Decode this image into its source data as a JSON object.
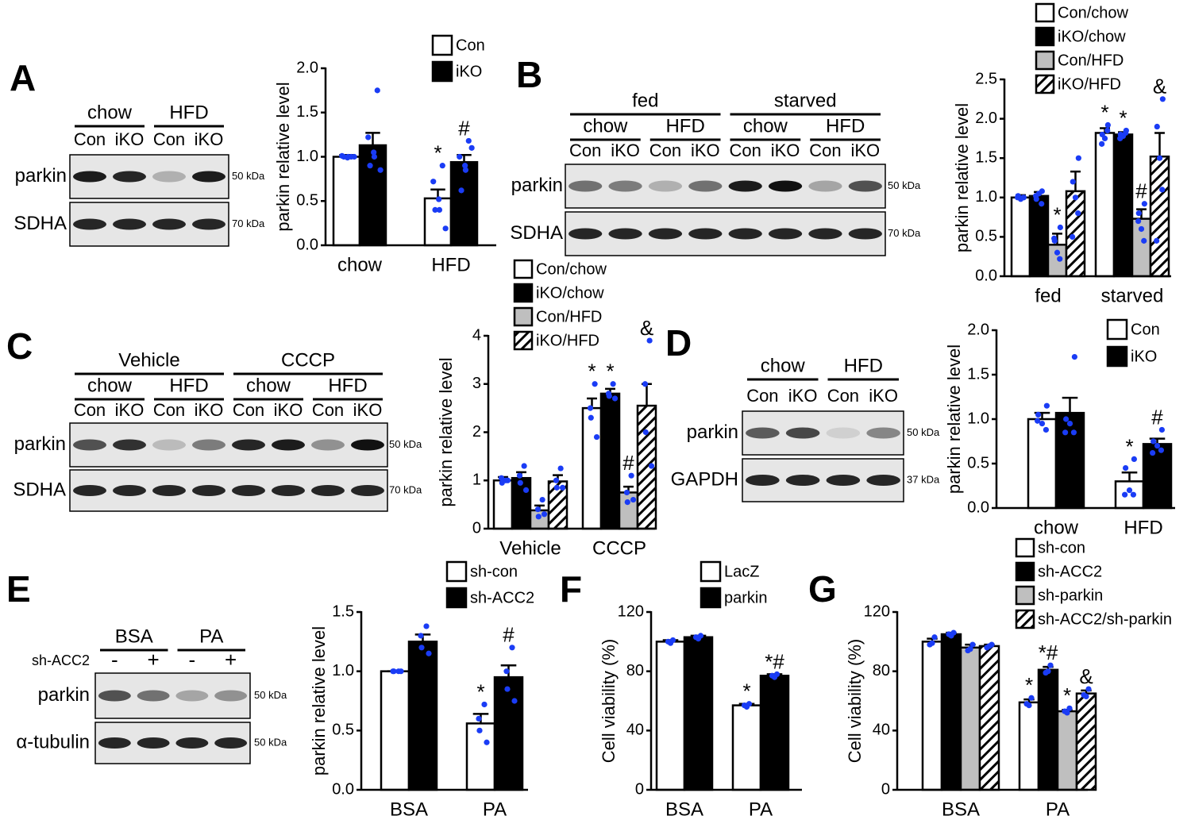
{
  "panels": [
    "A",
    "B",
    "C",
    "D",
    "E",
    "F",
    "G"
  ],
  "blots": [
    {
      "groups": [
        "chow",
        "HFD"
      ],
      "lanes": [
        "Con",
        "iKO",
        "Con",
        "iKO"
      ],
      "rows": [
        "parkin",
        "SDHA"
      ],
      "sizes": [
        "50 kDa",
        "70 kDa"
      ]
    },
    {
      "groups": [
        "fed",
        "starved"
      ],
      "subgroups": [
        "chow",
        "HFD",
        "chow",
        "HFD"
      ],
      "lanes": [
        "Con",
        "iKO",
        "Con",
        "iKO",
        "Con",
        "iKO",
        "Con",
        "iKO"
      ],
      "rows": [
        "parkin",
        "SDHA"
      ],
      "sizes": [
        "50 kDa",
        "70 kDa"
      ]
    },
    {
      "groups": [
        "Vehicle",
        "CCCP"
      ],
      "subgroups": [
        "chow",
        "HFD",
        "chow",
        "HFD"
      ],
      "lanes": [
        "Con",
        "iKO",
        "Con",
        "iKO",
        "Con",
        "iKO",
        "Con",
        "iKO"
      ],
      "rows": [
        "parkin",
        "SDHA"
      ],
      "sizes": [
        "50 kDa",
        "70 kDa"
      ]
    },
    {
      "groups": [
        "chow",
        "HFD"
      ],
      "lanes": [
        "Con",
        "iKO",
        "Con",
        "iKO"
      ],
      "rows": [
        "parkin",
        "GAPDH"
      ],
      "sizes": [
        "50 kDa",
        "37 kDa"
      ]
    },
    {
      "groups": [
        "BSA",
        "PA"
      ],
      "lane_label": "sh-ACC2",
      "lanes": [
        "-",
        "+",
        "-",
        "+"
      ],
      "rows": [
        "parkin",
        "α-tubulin"
      ],
      "sizes": [
        "50 kDa",
        "50 kDa"
      ]
    }
  ],
  "chart_data": [
    {
      "type": "bar",
      "ylabel": "parkin relative level",
      "categories": [
        "chow",
        "HFD"
      ],
      "ylim": [
        0,
        2
      ],
      "yticks": [
        {
          "value": 0,
          "label": "0.0"
        },
        0.5,
        {
          "value": 1,
          "label": "1.0"
        },
        1.5,
        {
          "value": 2,
          "label": "2.0"
        }
      ],
      "series": [
        {
          "name": "Con",
          "color": "#ffffff",
          "values": [
            1.0,
            0.53
          ],
          "errors": [
            0.02,
            0.1
          ],
          "points": [
            [
              1.0,
              1.01,
              0.99,
              1.0,
              1.0,
              1.0
            ],
            [
              0.9,
              0.72,
              0.52,
              0.4,
              0.4,
              0.19
            ]
          ],
          "markers": [
            null,
            "*"
          ]
        },
        {
          "name": "iKO",
          "color": "#000000",
          "values": [
            1.13,
            0.94
          ],
          "errors": [
            0.14,
            0.08
          ],
          "points": [
            [
              1.75,
              1.22,
              1.05,
              1.0,
              0.9,
              0.85
            ],
            [
              1.18,
              1.0,
              0.9,
              0.85,
              0.62,
              1.1
            ]
          ],
          "markers": [
            null,
            "#"
          ]
        }
      ]
    },
    {
      "type": "bar",
      "ylabel": "parkin relative level",
      "categories": [
        "fed",
        "starved"
      ],
      "ylim": [
        0,
        2.5
      ],
      "yticks": [
        {
          "value": 0,
          "label": "0.0"
        },
        0.5,
        {
          "value": 1,
          "label": "1.0"
        },
        1.5,
        {
          "value": 2,
          "label": "2.0"
        },
        2.5
      ],
      "series": [
        {
          "name": "Con/chow",
          "color": "#ffffff",
          "values": [
            1.0,
            1.82
          ],
          "errors": [
            0.03,
            0.06
          ],
          "points": [
            [
              1.0,
              1.02,
              0.98,
              1.0,
              1.0
            ],
            [
              1.92,
              1.8,
              1.75,
              1.85,
              1.68
            ]
          ],
          "markers": [
            null,
            "*"
          ]
        },
        {
          "name": "iKO/chow",
          "color": "#000000",
          "values": [
            1.02,
            1.8
          ],
          "errors": [
            0.05,
            0.03
          ],
          "points": [
            [
              1.08,
              0.98,
              1.05,
              0.92,
              1.02
            ],
            [
              1.85,
              1.8,
              1.78,
              1.82,
              1.75
            ]
          ],
          "markers": [
            null,
            "*"
          ]
        },
        {
          "name": "Con/HFD",
          "color": "#bfbfbf",
          "values": [
            0.4,
            0.73
          ],
          "errors": [
            0.14,
            0.12
          ],
          "points": [
            [
              0.62,
              0.45,
              0.3,
              0.22,
              0.48
            ],
            [
              0.92,
              0.8,
              0.6,
              0.45,
              0.7
            ]
          ],
          "markers": [
            "*",
            "#"
          ]
        },
        {
          "name": "iKO/HFD",
          "color": "#ffffff",
          "pattern": "hatch",
          "values": [
            1.08,
            1.52
          ],
          "errors": [
            0.25,
            0.3
          ],
          "points": [
            [
              1.5,
              1.2,
              1.0,
              0.8,
              0.5
            ],
            [
              2.25,
              1.9,
              1.5,
              1.1,
              0.45
            ]
          ],
          "markers": [
            null,
            "&"
          ]
        }
      ]
    },
    {
      "type": "bar",
      "ylabel": "parkin relative level",
      "categories": [
        "Vehicle",
        "CCCP"
      ],
      "ylim": [
        0,
        4
      ],
      "yticks": [
        0,
        1,
        2,
        3,
        4
      ],
      "series": [
        {
          "name": "Con/chow",
          "color": "#ffffff",
          "values": [
            1.0,
            2.5
          ],
          "errors": [
            0.07,
            0.2
          ],
          "points": [
            [
              1.0,
              1.05,
              0.95,
              1.0
            ],
            [
              3.0,
              2.5,
              2.3,
              1.9
            ]
          ],
          "markers": [
            null,
            "*"
          ]
        },
        {
          "name": "iKO/chow",
          "color": "#000000",
          "values": [
            1.05,
            2.8
          ],
          "errors": [
            0.12,
            0.1
          ],
          "points": [
            [
              1.3,
              1.1,
              0.95,
              0.8
            ],
            [
              3.0,
              2.8,
              2.75,
              2.7
            ]
          ],
          "markers": [
            null,
            "*"
          ]
        },
        {
          "name": "Con/HFD",
          "color": "#bfbfbf",
          "values": [
            0.38,
            0.75
          ],
          "errors": [
            0.1,
            0.12
          ],
          "points": [
            [
              0.6,
              0.4,
              0.25,
              0.3
            ],
            [
              1.1,
              0.75,
              0.55,
              0.6
            ]
          ],
          "markers": [
            null,
            "#"
          ]
        },
        {
          "name": "iKO/HFD",
          "color": "#ffffff",
          "pattern": "hatch",
          "values": [
            0.98,
            2.55
          ],
          "errors": [
            0.13,
            0.45
          ],
          "points": [
            [
              1.25,
              1.0,
              0.85,
              0.85
            ],
            [
              3.9,
              3.0,
              2.0,
              1.3
            ]
          ],
          "markers": [
            null,
            "&"
          ]
        }
      ]
    },
    {
      "type": "bar",
      "ylabel": "parkin relative level",
      "categories": [
        "chow",
        "HFD"
      ],
      "ylim": [
        0,
        2
      ],
      "yticks": [
        {
          "value": 0,
          "label": "0.0"
        },
        0.5,
        {
          "value": 1,
          "label": "1.0"
        },
        1.5,
        {
          "value": 2,
          "label": "2.0"
        }
      ],
      "series": [
        {
          "name": "Con",
          "color": "#ffffff",
          "values": [
            1.0,
            0.3
          ],
          "errors": [
            0.07,
            0.1
          ],
          "points": [
            [
              1.15,
              1.05,
              0.95,
              0.88,
              0.98
            ],
            [
              0.55,
              0.45,
              0.2,
              0.15,
              0.15
            ]
          ],
          "markers": [
            null,
            "*"
          ]
        },
        {
          "name": "iKO",
          "color": "#000000",
          "values": [
            1.07,
            0.72
          ],
          "errors": [
            0.17,
            0.06
          ],
          "points": [
            [
              1.7,
              1.0,
              0.95,
              0.85,
              0.85
            ],
            [
              0.88,
              0.75,
              0.7,
              0.65,
              0.62
            ]
          ],
          "markers": [
            null,
            "#"
          ]
        }
      ]
    },
    {
      "type": "bar",
      "ylabel": "parkin relative level",
      "categories": [
        "BSA",
        "PA"
      ],
      "ylim": [
        0,
        1.5
      ],
      "yticks": [
        {
          "value": 0,
          "label": "0.0"
        },
        0.5,
        {
          "value": 1,
          "label": "1.0"
        },
        1.5
      ],
      "series": [
        {
          "name": "sh-con",
          "color": "#ffffff",
          "values": [
            1.0,
            0.56
          ],
          "errors": [
            0.0,
            0.08
          ],
          "points": [
            [
              1.0,
              1.0,
              1.0,
              1.0
            ],
            [
              0.72,
              0.6,
              0.5,
              0.4
            ]
          ],
          "markers": [
            null,
            "*"
          ]
        },
        {
          "name": "sh-ACC2",
          "color": "#000000",
          "values": [
            1.25,
            0.95
          ],
          "errors": [
            0.06,
            0.1
          ],
          "points": [
            [
              1.38,
              1.3,
              1.2,
              1.15
            ],
            [
              1.2,
              1.0,
              0.85,
              0.75
            ]
          ],
          "markers": [
            null,
            "#"
          ]
        }
      ]
    },
    {
      "type": "bar",
      "ylabel": "Cell viability (%)",
      "categories": [
        "BSA",
        "PA"
      ],
      "ylim": [
        0,
        120
      ],
      "yticks": [
        0,
        40,
        80,
        120
      ],
      "series": [
        {
          "name": "LacZ",
          "color": "#ffffff",
          "values": [
            100,
            57
          ],
          "errors": [
            1,
            1
          ],
          "points": [
            [
              101,
              99,
              100
            ],
            [
              58,
              56,
              57
            ]
          ],
          "markers": [
            null,
            "*"
          ]
        },
        {
          "name": "parkin",
          "color": "#000000",
          "values": [
            103,
            77
          ],
          "errors": [
            1,
            1
          ],
          "points": [
            [
              104,
              102,
              103
            ],
            [
              78,
              76,
              77
            ]
          ],
          "markers": [
            null,
            "*#"
          ]
        }
      ]
    },
    {
      "type": "bar",
      "ylabel": "Cell viability (%)",
      "categories": [
        "BSA",
        "PA"
      ],
      "ylim": [
        0,
        120
      ],
      "yticks": [
        0,
        40,
        80,
        120
      ],
      "series": [
        {
          "name": "sh-con",
          "color": "#ffffff",
          "values": [
            100,
            59
          ],
          "errors": [
            2,
            2
          ],
          "points": [
            [
              103,
              99,
              98
            ],
            [
              62,
              57,
              58
            ]
          ],
          "markers": [
            null,
            "*"
          ]
        },
        {
          "name": "sh-ACC2",
          "color": "#000000",
          "values": [
            105,
            81
          ],
          "errors": [
            1,
            2
          ],
          "points": [
            [
              106,
              104,
              105
            ],
            [
              84,
              80,
              79
            ]
          ],
          "markers": [
            null,
            "*#"
          ]
        },
        {
          "name": "sh-parkin",
          "color": "#bfbfbf",
          "values": [
            96,
            53
          ],
          "errors": [
            2,
            1
          ],
          "points": [
            [
              98,
              95,
              94
            ],
            [
              55,
              52,
              53
            ]
          ],
          "markers": [
            null,
            "*"
          ]
        },
        {
          "name": "sh-ACC2/sh-parkin",
          "color": "#ffffff",
          "pattern": "hatch",
          "values": [
            97,
            65
          ],
          "errors": [
            1,
            2
          ],
          "points": [
            [
              98,
              97,
              96
            ],
            [
              68,
              63,
              64
            ]
          ],
          "markers": [
            null,
            "&"
          ]
        }
      ]
    }
  ]
}
